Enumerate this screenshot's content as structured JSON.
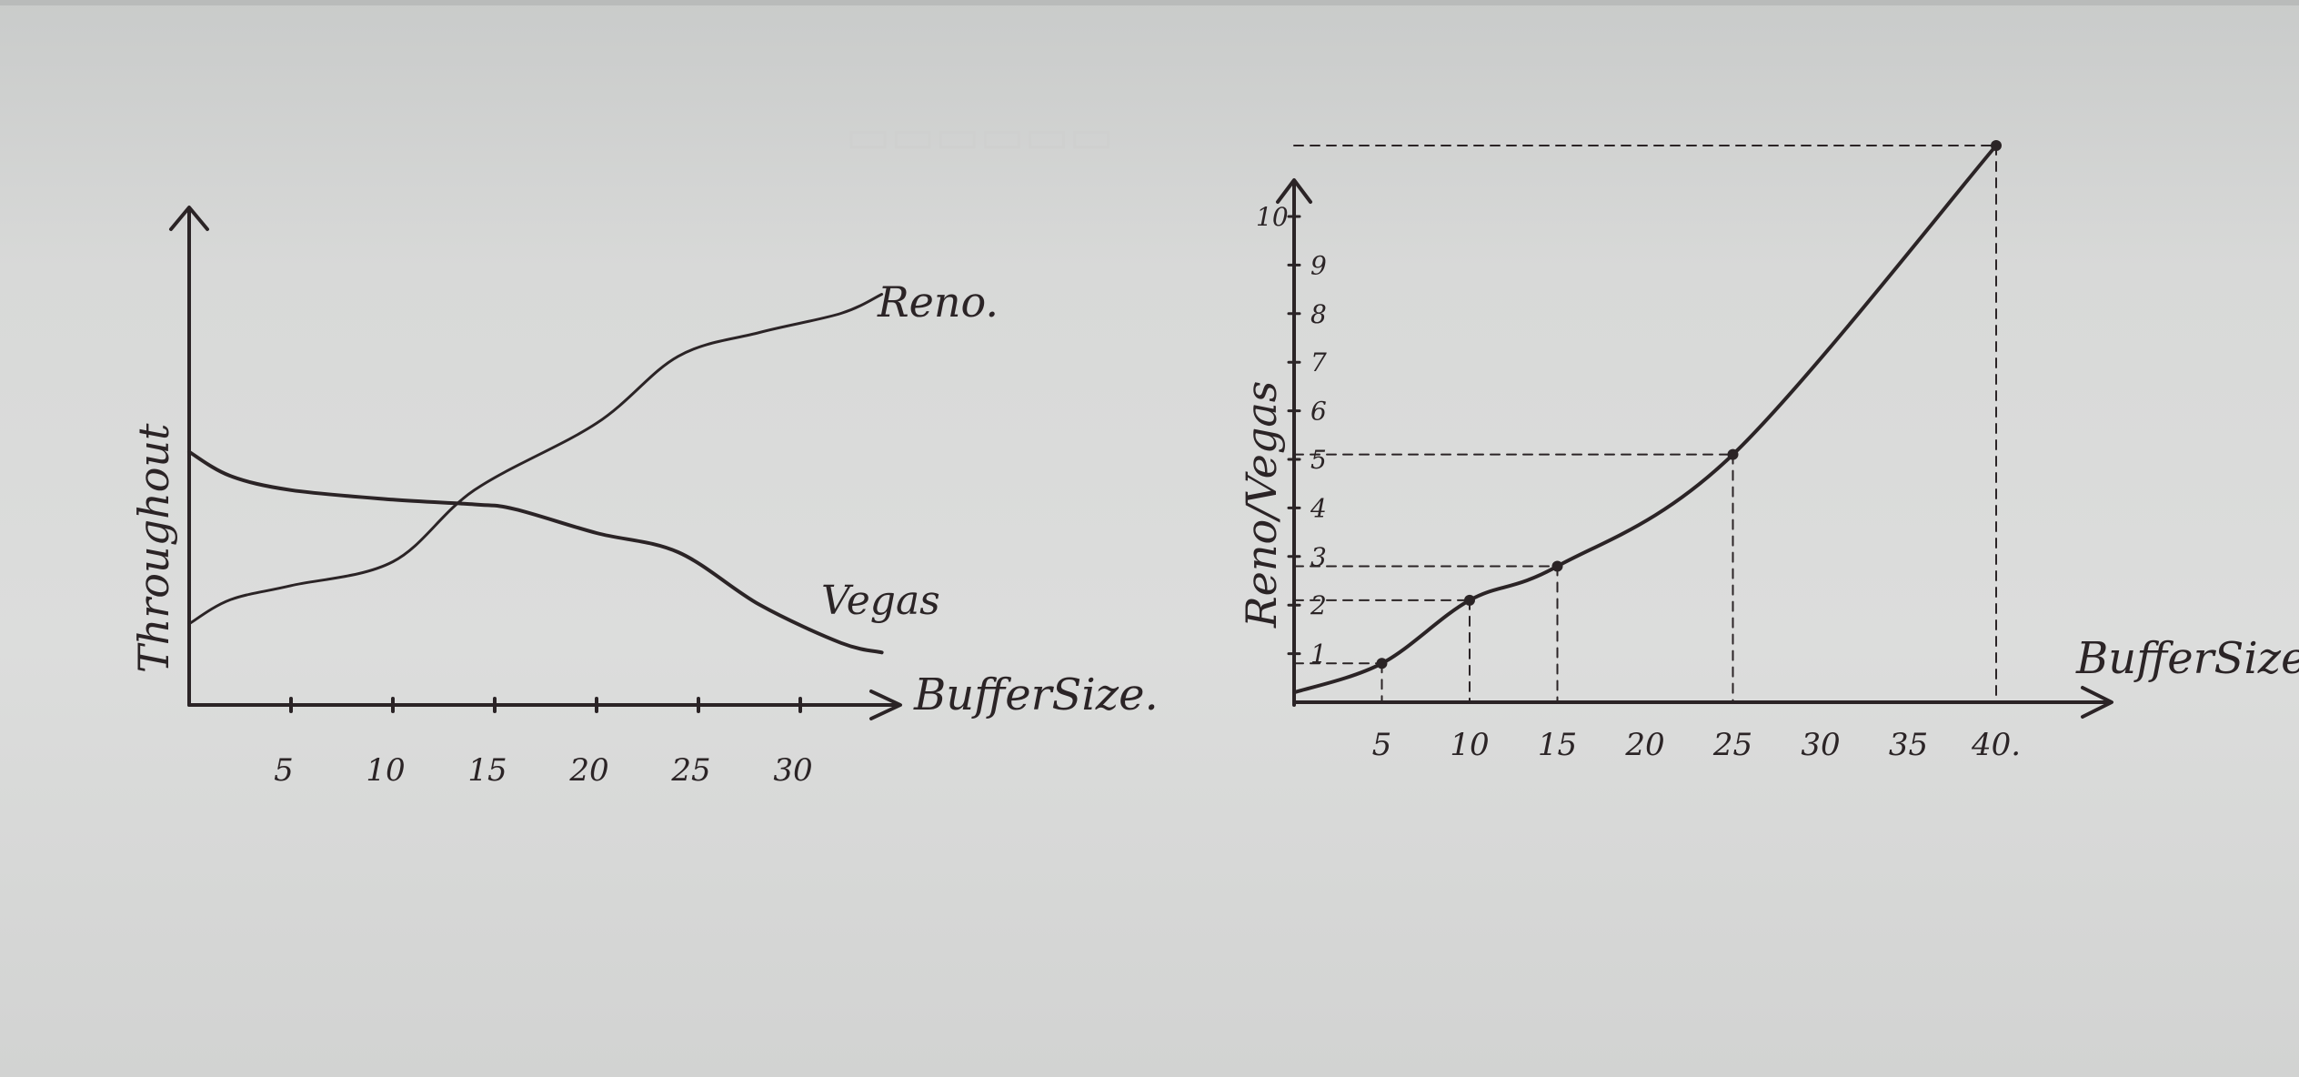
{
  "chart_data": [
    {
      "type": "line",
      "title": "",
      "xlabel": "BufferSize.",
      "ylabel": "Throughout",
      "x_ticks": [
        "5",
        "10",
        "15",
        "20",
        "25",
        "30"
      ],
      "xlim": [
        0,
        34
      ],
      "ylim": [
        0,
        10
      ],
      "series": [
        {
          "name": "Reno.",
          "x": [
            0,
            2,
            5,
            10,
            14,
            20,
            24,
            28,
            32,
            34
          ],
          "y": [
            1.7,
            2.2,
            2.5,
            3.0,
            4.5,
            5.9,
            7.3,
            7.8,
            8.2,
            8.6
          ]
        },
        {
          "name": "Vegas",
          "x": [
            0,
            2,
            5,
            10,
            14,
            16,
            20,
            24,
            28,
            32,
            34
          ],
          "y": [
            5.3,
            4.8,
            4.5,
            4.3,
            4.2,
            4.1,
            3.6,
            3.2,
            2.1,
            1.3,
            1.1
          ]
        }
      ]
    },
    {
      "type": "line",
      "title": "",
      "xlabel": "BufferSize.",
      "ylabel": "Reno/Vegas",
      "x_ticks": [
        "5",
        "10",
        "15",
        "20",
        "25",
        "30",
        "35",
        "40."
      ],
      "y_ticks": [
        "1",
        "2",
        "3",
        "4",
        "5",
        "6",
        "7",
        "8",
        "9",
        "10"
      ],
      "xlim": [
        0,
        43
      ],
      "ylim": [
        0,
        10.5
      ],
      "series": [
        {
          "name": "",
          "x": [
            0,
            5,
            10,
            15,
            25,
            40
          ],
          "y": [
            0.2,
            0.8,
            2.1,
            2.8,
            5.1,
            12.1
          ]
        }
      ],
      "annotations": [
        {
          "x": 5,
          "y": 0.8,
          "guides": "dashed"
        },
        {
          "x": 10,
          "y": 2.1,
          "guides": "dashed"
        },
        {
          "x": 15,
          "y": 2.8,
          "guides": "dashed"
        },
        {
          "x": 25,
          "y": 5.1,
          "guides": "dashed"
        },
        {
          "x": 40,
          "y": 12.1,
          "guides": "dashed"
        }
      ]
    }
  ]
}
